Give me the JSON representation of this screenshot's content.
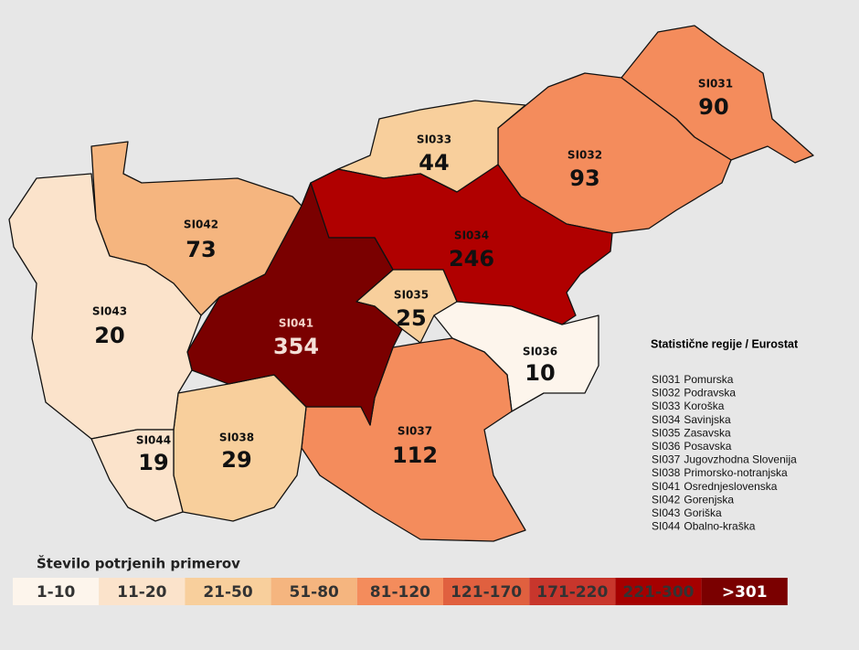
{
  "title": "Statistične regije / Eurostat",
  "regions": [
    {
      "code": "SI031",
      "name": "Pomurska",
      "value": 90,
      "color": "#f48c5c"
    },
    {
      "code": "SI032",
      "name": "Podravska",
      "value": 93,
      "color": "#f48c5c"
    },
    {
      "code": "SI033",
      "name": "Koroška",
      "value": 44,
      "color": "#f8cf9c"
    },
    {
      "code": "SI034",
      "name": "Savinjska",
      "value": 246,
      "color": "#b00000"
    },
    {
      "code": "SI035",
      "name": "Zasavska",
      "value": 25,
      "color": "#f8cf9c"
    },
    {
      "code": "SI036",
      "name": "Posavska",
      "value": 10,
      "color": "#fdf5ec"
    },
    {
      "code": "SI037",
      "name": "Jugovzhodna Slovenija",
      "value": 112,
      "color": "#f48c5c"
    },
    {
      "code": "SI038",
      "name": "Primorsko-notranjska",
      "value": 29,
      "color": "#f8cf9c"
    },
    {
      "code": "SI041",
      "name": "Osrednjeslovenska",
      "value": 354,
      "color": "#7a0000"
    },
    {
      "code": "SI042",
      "name": "Gorenjska",
      "value": 73,
      "color": "#f5b57f"
    },
    {
      "code": "SI043",
      "name": "Goriška",
      "value": 20,
      "color": "#fbe3cb"
    },
    {
      "code": "SI044",
      "name": "Obalno-kraška",
      "value": 19,
      "color": "#fbe3cb"
    }
  ],
  "legend": {
    "title": "Število potrjenih primerov",
    "bins": [
      {
        "label": "1-10",
        "color": "#fdf5ec"
      },
      {
        "label": "11-20",
        "color": "#fbe3cb"
      },
      {
        "label": "21-50",
        "color": "#f8cf9c"
      },
      {
        "label": "51-80",
        "color": "#f5b57f"
      },
      {
        "label": "81-120",
        "color": "#f48c5c"
      },
      {
        "label": "121-170",
        "color": "#e0603f"
      },
      {
        "label": "171-220",
        "color": "#c8362c"
      },
      {
        "label": "221-300",
        "color": "#a50000"
      },
      {
        "label": ">301",
        "color": "#7a0000"
      }
    ]
  }
}
